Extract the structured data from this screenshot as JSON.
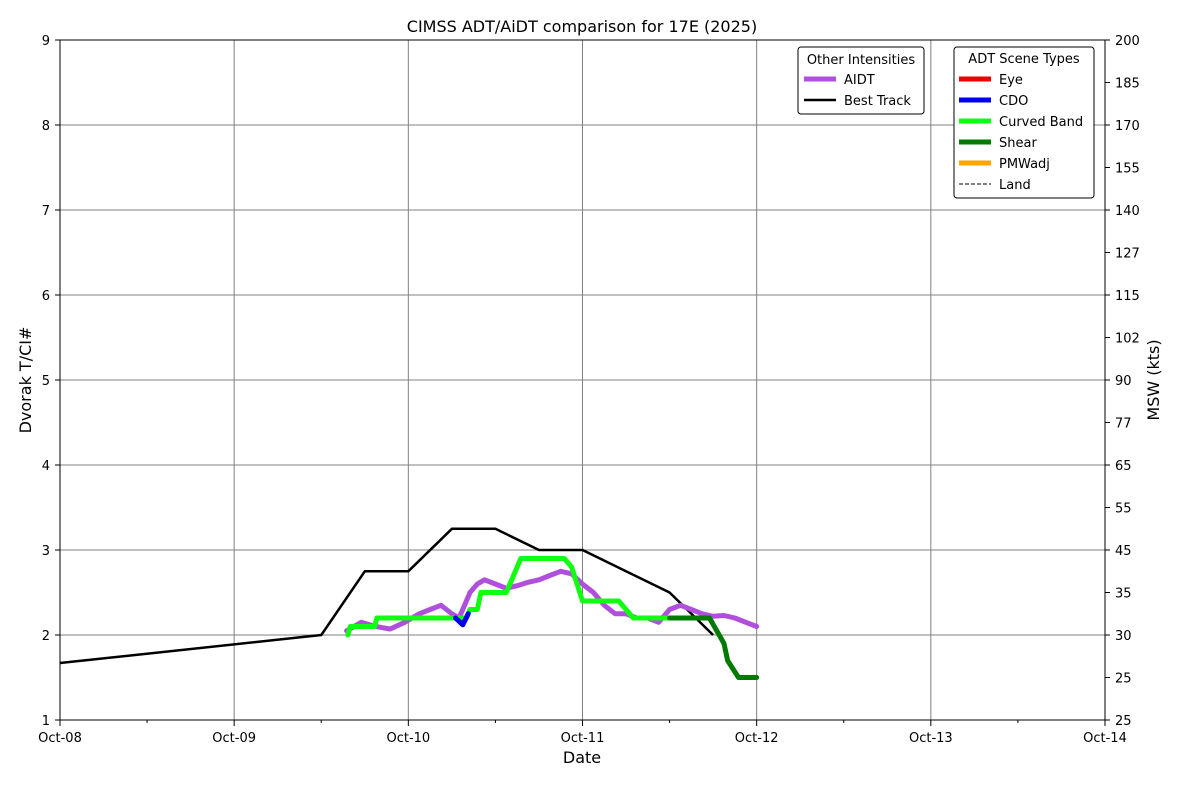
{
  "chart_data": {
    "type": "line",
    "title": "CIMSS ADT/AiDT comparison for 17E (2025)",
    "xlabel": "Date",
    "ylabel_left": "Dvorak T/CI#",
    "ylabel_right": "MSW (kts)",
    "x_range": [
      "Oct-08",
      "Oct-14"
    ],
    "x_ticks": [
      "Oct-08",
      "Oct-09",
      "Oct-10",
      "Oct-11",
      "Oct-12",
      "Oct-13",
      "Oct-14"
    ],
    "y_range": [
      1,
      9
    ],
    "y_ticks": [
      "1",
      "2",
      "3",
      "4",
      "5",
      "6",
      "7",
      "8",
      "9"
    ],
    "right_ticks": [
      {
        "t": 1,
        "label": "25"
      },
      {
        "t": 1.5,
        "label": "25"
      },
      {
        "t": 2,
        "label": "30"
      },
      {
        "t": 2.5,
        "label": "35"
      },
      {
        "t": 3,
        "label": "45"
      },
      {
        "t": 3.5,
        "label": "55"
      },
      {
        "t": 4,
        "label": "65"
      },
      {
        "t": 4.5,
        "label": "77"
      },
      {
        "t": 5,
        "label": "90"
      },
      {
        "t": 5.5,
        "label": "102"
      },
      {
        "t": 6,
        "label": "115"
      },
      {
        "t": 6.5,
        "label": "127"
      },
      {
        "t": 7,
        "label": "140"
      },
      {
        "t": 7.5,
        "label": "155"
      },
      {
        "t": 8,
        "label": "170"
      },
      {
        "t": 8.5,
        "label": "185"
      },
      {
        "t": 9,
        "label": "200"
      }
    ],
    "grid": true,
    "legend_other": {
      "title": "Other Intensities",
      "placement": "top-right",
      "items": [
        {
          "label": "AIDT",
          "color": "#b04fdc"
        },
        {
          "label": "Best Track",
          "color": "#000000"
        }
      ]
    },
    "legend_scene": {
      "title": "ADT Scene Types",
      "placement": "top-right",
      "items": [
        {
          "label": "Eye",
          "color": "#ee0000",
          "style": "solid"
        },
        {
          "label": "CDO",
          "color": "#0000ee",
          "style": "solid"
        },
        {
          "label": "Curved Band",
          "color": "#11ff11",
          "style": "solid"
        },
        {
          "label": "Shear",
          "color": "#007a00",
          "style": "solid"
        },
        {
          "label": "PMWadj",
          "color": "#ffa500",
          "style": "solid"
        },
        {
          "label": "Land",
          "color": "#000000",
          "style": "dashed"
        }
      ]
    },
    "series": [
      {
        "name": "Best Track",
        "color": "#000000",
        "x": [
          "10/08 00:00",
          "10/09 12:00",
          "10/09 18:00",
          "10/10 00:00",
          "10/10 06:00",
          "10/10 12:00",
          "10/10 18:00",
          "10/11 00:00",
          "10/11 12:00",
          "10/11 18:00"
        ],
        "y": [
          1.67,
          2.0,
          2.75,
          2.75,
          3.25,
          3.25,
          3.0,
          3.0,
          2.5,
          2.0
        ]
      },
      {
        "name": "AIDT",
        "color": "#b04fdc",
        "x": [
          "10/09 15:30",
          "10/09 17:30",
          "10/09 19:30",
          "10/09 21:30",
          "10/09 23:30",
          "10/10 01:30",
          "10/10 03:00",
          "10/10 04:30",
          "10/10 06:00",
          "10/10 07:00",
          "10/10 08:30",
          "10/10 09:30",
          "10/10 10:30",
          "10/10 12:00",
          "10/10 13:30",
          "10/10 15:00",
          "10/10 16:30",
          "10/10 18:00",
          "10/10 19:30",
          "10/10 21:00",
          "10/10 22:30",
          "10/11 00:00",
          "10/11 01:30",
          "10/11 03:00",
          "10/11 04:30",
          "10/11 06:00",
          "10/11 07:30",
          "10/11 09:00",
          "10/11 10:30",
          "10/11 12:00",
          "10/11 13:30",
          "10/11 15:00",
          "10/11 16:30",
          "10/11 18:00",
          "10/11 19:30",
          "10/11 21:00",
          "10/11 22:30",
          "10/12 00:00"
        ],
        "y": [
          2.05,
          2.15,
          2.1,
          2.07,
          2.15,
          2.25,
          2.3,
          2.35,
          2.25,
          2.2,
          2.5,
          2.6,
          2.65,
          2.6,
          2.55,
          2.58,
          2.62,
          2.65,
          2.7,
          2.75,
          2.72,
          2.6,
          2.5,
          2.35,
          2.25,
          2.25,
          2.2,
          2.2,
          2.15,
          2.3,
          2.35,
          2.3,
          2.25,
          2.22,
          2.23,
          2.2,
          2.15,
          2.1
        ]
      },
      {
        "name": "Curved Band",
        "color": "#11ff11",
        "x": [
          "10/09 15:40",
          "10/09 16:00",
          "10/09 18:00",
          "10/09 19:20",
          "10/09 19:40",
          "10/10 00:00",
          "10/10 06:00",
          "10/10 08:00",
          "10/10 08:30",
          "10/10 09:30",
          "10/10 10:00",
          "10/10 13:30",
          "10/10 15:30",
          "10/10 18:00",
          "10/10 21:30",
          "10/10 22:30",
          "10/11 00:00",
          "10/11 05:00",
          "10/11 06:00",
          "10/11 07:00",
          "10/11 12:00"
        ],
        "y": [
          2.0,
          2.1,
          2.1,
          2.1,
          2.2,
          2.2,
          2.2,
          2.2,
          2.3,
          2.3,
          2.5,
          2.5,
          2.9,
          2.9,
          2.9,
          2.8,
          2.4,
          2.4,
          2.3,
          2.2,
          2.2
        ]
      },
      {
        "name": "CDO",
        "color": "#0000ee",
        "x": [
          "10/10 06:30",
          "10/10 07:30",
          "10/10 08:15"
        ],
        "y": [
          2.2,
          2.12,
          2.25
        ]
      },
      {
        "name": "Shear",
        "color": "#007a00",
        "x": [
          "10/11 12:00",
          "10/11 17:30",
          "10/11 19:30",
          "10/11 20:00",
          "10/11 21:30",
          "10/12 00:00"
        ],
        "y": [
          2.2,
          2.2,
          1.9,
          1.7,
          1.5,
          1.5
        ]
      }
    ]
  }
}
